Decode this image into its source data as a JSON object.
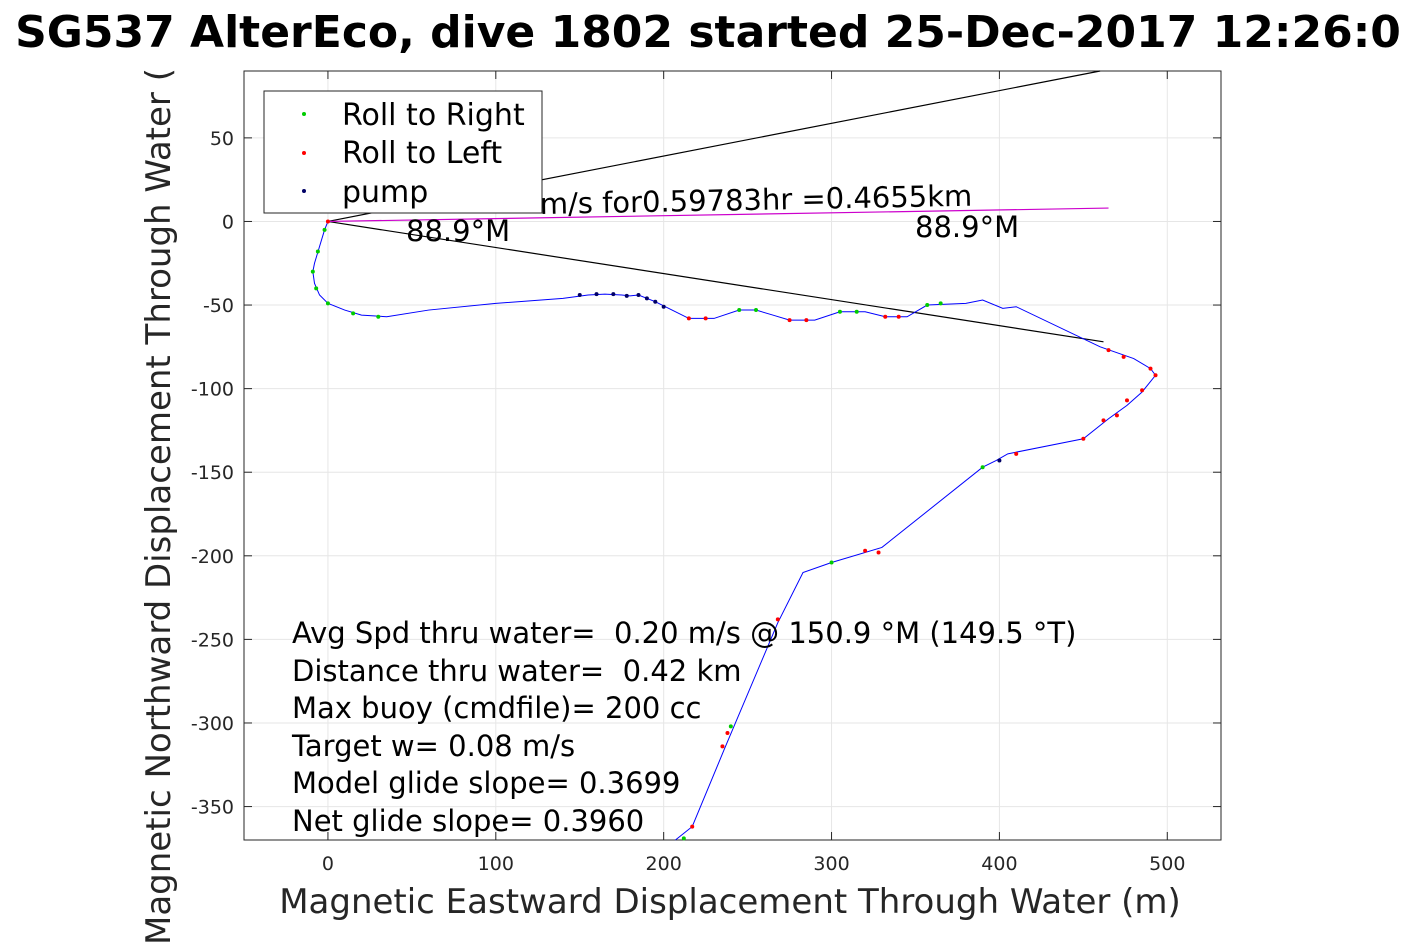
{
  "chart_data": {
    "type": "line",
    "title": "SG537 AlterEco, dive 1802 started 25-Dec-2017 12:26:0",
    "xlabel": "Magnetic Eastward Displacement Through Water (m)",
    "ylabel": "Magnetic Northward Displacement Through Water (",
    "xlim": [
      -50,
      532
    ],
    "ylim": [
      -370,
      90
    ],
    "xticks": [
      0,
      100,
      200,
      300,
      400,
      500
    ],
    "yticks": [
      50,
      0,
      -50,
      -100,
      -150,
      -200,
      -250,
      -300,
      -350
    ],
    "grid": true,
    "legend": {
      "placement": "top-left",
      "entries": [
        {
          "label": "Roll to Right",
          "color": "#00cc00"
        },
        {
          "label": "Roll to Left",
          "color": "#ff0000"
        },
        {
          "label": "pump",
          "color": "#000066"
        }
      ]
    },
    "track": {
      "color": "#0000ff",
      "points": [
        [
          0,
          0
        ],
        [
          -2,
          -5
        ],
        [
          -5,
          -15
        ],
        [
          -8,
          -25
        ],
        [
          -9,
          -30
        ],
        [
          -8,
          -37
        ],
        [
          -5,
          -44
        ],
        [
          0,
          -49
        ],
        [
          10,
          -53
        ],
        [
          20,
          -56
        ],
        [
          35,
          -57
        ],
        [
          60,
          -53
        ],
        [
          100,
          -49
        ],
        [
          140,
          -46
        ],
        [
          155,
          -44
        ],
        [
          165,
          -43.5
        ],
        [
          175,
          -44
        ],
        [
          180,
          -44.5
        ],
        [
          185,
          -44
        ],
        [
          195,
          -48
        ],
        [
          205,
          -53
        ],
        [
          215,
          -58
        ],
        [
          230,
          -58
        ],
        [
          245,
          -53
        ],
        [
          255,
          -53
        ],
        [
          265,
          -56
        ],
        [
          275,
          -59
        ],
        [
          290,
          -59
        ],
        [
          305,
          -54
        ],
        [
          320,
          -54
        ],
        [
          332,
          -57
        ],
        [
          345,
          -57
        ],
        [
          357,
          -50
        ],
        [
          380,
          -49
        ],
        [
          390,
          -47
        ],
        [
          402,
          -52
        ],
        [
          410,
          -51
        ],
        [
          460,
          -75
        ],
        [
          480,
          -82
        ],
        [
          490,
          -88
        ],
        [
          493,
          -92
        ],
        [
          485,
          -102
        ],
        [
          476,
          -110
        ],
        [
          465,
          -118
        ],
        [
          450,
          -130
        ],
        [
          405,
          -139
        ],
        [
          398,
          -143
        ],
        [
          390,
          -147
        ],
        [
          330,
          -195
        ],
        [
          300,
          -204
        ],
        [
          283,
          -210
        ],
        [
          268,
          -240
        ],
        [
          236,
          -316
        ],
        [
          217,
          -362
        ],
        [
          207,
          -375
        ]
      ]
    },
    "roll_right_points": [
      [
        -2,
        -5
      ],
      [
        -6,
        -18
      ],
      [
        -9,
        -30
      ],
      [
        -7,
        -40
      ],
      [
        0,
        -49
      ],
      [
        15,
        -55
      ],
      [
        30,
        -57
      ],
      [
        245,
        -53
      ],
      [
        255,
        -53
      ],
      [
        305,
        -54
      ],
      [
        315,
        -54
      ],
      [
        357,
        -50
      ],
      [
        365,
        -49
      ],
      [
        390,
        -147
      ],
      [
        300,
        -204
      ],
      [
        240,
        -302
      ],
      [
        212,
        -369
      ]
    ],
    "roll_left_points": [
      [
        0,
        0
      ],
      [
        215,
        -58
      ],
      [
        225,
        -58
      ],
      [
        275,
        -59
      ],
      [
        285,
        -59
      ],
      [
        332,
        -57
      ],
      [
        340,
        -57
      ],
      [
        465,
        -77
      ],
      [
        474,
        -81
      ],
      [
        490,
        -88
      ],
      [
        493,
        -92
      ],
      [
        485,
        -101
      ],
      [
        476,
        -107
      ],
      [
        470,
        -116
      ],
      [
        462,
        -119
      ],
      [
        450,
        -130
      ],
      [
        410,
        -139
      ],
      [
        320,
        -197
      ],
      [
        328,
        -198
      ],
      [
        268,
        -238
      ],
      [
        238,
        -306
      ],
      [
        235,
        -314
      ],
      [
        217,
        -362
      ]
    ],
    "pump_points": [
      [
        150,
        -44
      ],
      [
        160,
        -43.5
      ],
      [
        170,
        -43.5
      ],
      [
        178,
        -44.5
      ],
      [
        185,
        -44
      ],
      [
        190,
        -46
      ],
      [
        195,
        -48
      ],
      [
        200,
        -51
      ],
      [
        400,
        -143
      ]
    ],
    "current_lines": [
      {
        "from": [
          0,
          0
        ],
        "to": [
          460,
          90
        ],
        "color": "#000000"
      },
      {
        "from": [
          0,
          0
        ],
        "to": [
          462,
          -72
        ],
        "color": "#000000"
      },
      {
        "from": [
          0,
          0
        ],
        "to": [
          465,
          8
        ],
        "color": "#cc00cc"
      }
    ],
    "annotations": {
      "line1_partial": "m/s for0.59783hr =0.4655km",
      "heading_left": "88.9°M",
      "heading_right": "88.9°M"
    },
    "stats": [
      "Avg Spd thru water=  0.20 m/s @ 150.9 °M (149.5 °T)",
      "Distance thru water=  0.42 km",
      "Max buoy (cmdfile)= 200 cc",
      "Target w= 0.08 m/s",
      "Model glide slope= 0.3699",
      "Net glide slope= 0.3960"
    ]
  }
}
